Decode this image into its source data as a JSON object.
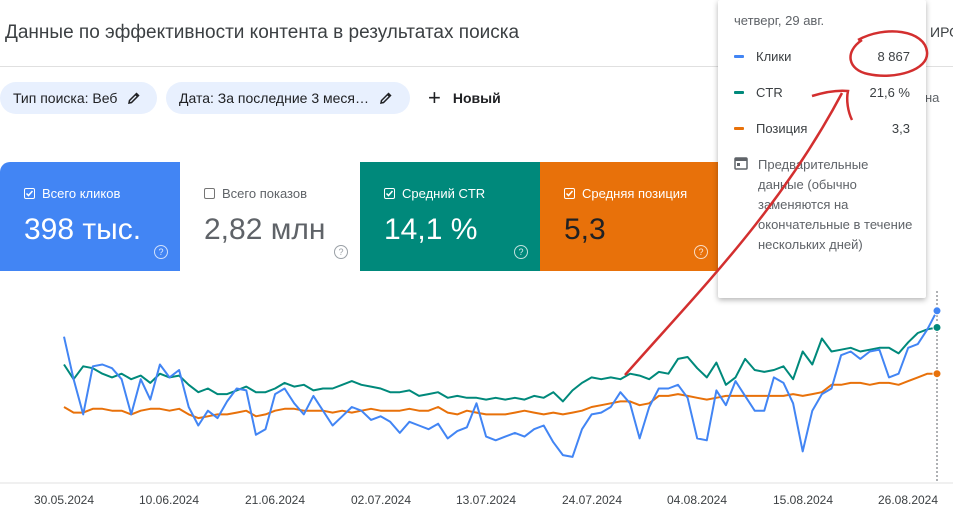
{
  "header": {
    "title": "Данные по эффективности контента в результатах поиска",
    "right_clip": "ИРО"
  },
  "filters": {
    "chips": [
      {
        "label": "Тип поиска: Веб"
      },
      {
        "label": "Дата: За последние 3 меся…"
      }
    ],
    "new_label": "Новый",
    "right_clip": "на"
  },
  "metrics": [
    {
      "label": "Всего кликов",
      "value": "398 тыс.",
      "checked": true,
      "color": "#4285f4"
    },
    {
      "label": "Всего показов",
      "value": "2,82 млн",
      "checked": false,
      "color": "#5e35b1"
    },
    {
      "label": "Средний CTR",
      "value": "14,1 %",
      "checked": true,
      "color": "#00897b"
    },
    {
      "label": "Средняя позиция",
      "value": "5,3",
      "checked": true,
      "color": "#e8710a"
    }
  ],
  "tooltip": {
    "date": "четверг, 29 авг.",
    "rows": [
      {
        "name": "Клики",
        "value": "8 867",
        "color": "#4285f4"
      },
      {
        "name": "CTR",
        "value": "21,6 %",
        "color": "#00897b"
      },
      {
        "name": "Позиция",
        "value": "3,3",
        "color": "#e8710a"
      }
    ],
    "note": "Предварительные данные (обычно заменяются на окончательные в течение нескольких дней)"
  },
  "chart_data": {
    "type": "line",
    "x_tick_labels": [
      "30.05.2024",
      "10.06.2024",
      "21.06.2024",
      "02.07.2024",
      "13.07.2024",
      "24.07.2024",
      "04.08.2024",
      "15.08.2024",
      "26.08.2024"
    ],
    "series": [
      {
        "name": "Клики",
        "color": "#4285f4",
        "values": [
          0.78,
          0.55,
          0.36,
          0.62,
          0.63,
          0.61,
          0.55,
          0.36,
          0.55,
          0.44,
          0.63,
          0.56,
          0.6,
          0.4,
          0.3,
          0.38,
          0.34,
          0.43,
          0.5,
          0.49,
          0.25,
          0.28,
          0.47,
          0.5,
          0.42,
          0.36,
          0.46,
          0.38,
          0.3,
          0.35,
          0.4,
          0.38,
          0.33,
          0.35,
          0.32,
          0.26,
          0.32,
          0.3,
          0.28,
          0.31,
          0.23,
          0.27,
          0.29,
          0.42,
          0.24,
          0.22,
          0.24,
          0.26,
          0.24,
          0.28,
          0.3,
          0.21,
          0.14,
          0.13,
          0.28,
          0.36,
          0.37,
          0.4,
          0.48,
          0.42,
          0.23,
          0.4,
          0.5,
          0.5,
          0.52,
          0.45,
          0.23,
          0.22,
          0.49,
          0.41,
          0.54,
          0.46,
          0.38,
          0.38,
          0.56,
          0.53,
          0.42,
          0.16,
          0.38,
          0.47,
          0.5,
          0.68,
          0.7,
          0.66,
          0.7,
          0.71,
          0.56,
          0.58,
          0.72,
          0.74,
          0.82,
          0.92
        ]
      },
      {
        "name": "CTR",
        "color": "#00897b",
        "values": [
          0.63,
          0.55,
          0.62,
          0.61,
          0.58,
          0.56,
          0.58,
          0.55,
          0.57,
          0.53,
          0.58,
          0.56,
          0.57,
          0.52,
          0.48,
          0.5,
          0.47,
          0.47,
          0.49,
          0.51,
          0.48,
          0.48,
          0.5,
          0.53,
          0.51,
          0.52,
          0.49,
          0.5,
          0.5,
          0.52,
          0.54,
          0.52,
          0.51,
          0.5,
          0.48,
          0.48,
          0.49,
          0.46,
          0.47,
          0.48,
          0.45,
          0.46,
          0.45,
          0.45,
          0.44,
          0.45,
          0.44,
          0.45,
          0.44,
          0.46,
          0.45,
          0.48,
          0.43,
          0.49,
          0.53,
          0.56,
          0.55,
          0.56,
          0.55,
          0.58,
          0.57,
          0.55,
          0.59,
          0.58,
          0.66,
          0.67,
          0.61,
          0.56,
          0.64,
          0.52,
          0.56,
          0.66,
          0.6,
          0.59,
          0.6,
          0.62,
          0.55,
          0.7,
          0.63,
          0.77,
          0.7,
          0.71,
          0.72,
          0.7,
          0.71,
          0.72,
          0.72,
          0.69,
          0.75,
          0.8,
          0.82,
          0.83
        ]
      },
      {
        "name": "Позиция",
        "color": "#e8710a",
        "values": [
          0.4,
          0.37,
          0.37,
          0.39,
          0.39,
          0.38,
          0.38,
          0.36,
          0.38,
          0.39,
          0.39,
          0.38,
          0.39,
          0.36,
          0.34,
          0.35,
          0.36,
          0.36,
          0.37,
          0.38,
          0.35,
          0.36,
          0.38,
          0.39,
          0.39,
          0.38,
          0.38,
          0.38,
          0.37,
          0.38,
          0.37,
          0.38,
          0.39,
          0.38,
          0.38,
          0.38,
          0.39,
          0.38,
          0.38,
          0.4,
          0.37,
          0.36,
          0.38,
          0.37,
          0.36,
          0.36,
          0.36,
          0.37,
          0.38,
          0.37,
          0.36,
          0.37,
          0.36,
          0.37,
          0.38,
          0.4,
          0.41,
          0.42,
          0.43,
          0.43,
          0.41,
          0.42,
          0.46,
          0.46,
          0.47,
          0.46,
          0.45,
          0.44,
          0.45,
          0.46,
          0.46,
          0.46,
          0.46,
          0.46,
          0.46,
          0.46,
          0.47,
          0.46,
          0.47,
          0.48,
          0.52,
          0.52,
          0.53,
          0.53,
          0.52,
          0.53,
          0.53,
          0.52,
          0.54,
          0.56,
          0.58,
          0.58
        ]
      }
    ],
    "y_unit": "normalized 0-1 (no y-axis printed)",
    "grid": false,
    "legend": "none"
  }
}
